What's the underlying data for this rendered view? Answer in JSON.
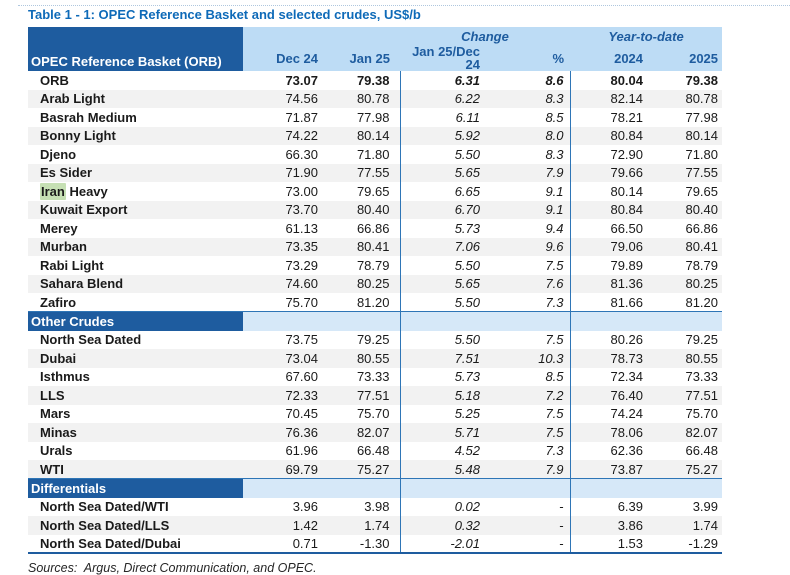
{
  "title": "Table 1 - 1: OPEC Reference Basket and selected crudes, US$/b",
  "sources": "Sources:  Argus, Direct Communication, and OPEC.",
  "table": {
    "corner_header": "OPEC Reference Basket (ORB)",
    "group_headers": {
      "change": "Change",
      "ytd": "Year-to-date"
    },
    "columns": [
      "Dec 24",
      "Jan 25",
      "Jan 25/Dec 24",
      "%",
      "2024",
      "2025"
    ],
    "sections": [
      {
        "header": null,
        "rows": [
          {
            "label": "ORB",
            "bold": true,
            "values": [
              "73.07",
              "79.38",
              "6.31",
              "8.6",
              "80.04",
              "79.38"
            ]
          },
          {
            "label": "Arab Light",
            "values": [
              "74.56",
              "80.78",
              "6.22",
              "8.3",
              "82.14",
              "80.78"
            ]
          },
          {
            "label": "Basrah Medium",
            "values": [
              "71.87",
              "77.98",
              "6.11",
              "8.5",
              "78.21",
              "77.98"
            ]
          },
          {
            "label": "Bonny Light",
            "values": [
              "74.22",
              "80.14",
              "5.92",
              "8.0",
              "80.84",
              "80.14"
            ]
          },
          {
            "label": "Djeno",
            "values": [
              "66.30",
              "71.80",
              "5.50",
              "8.3",
              "72.90",
              "71.80"
            ]
          },
          {
            "label": "Es Sider",
            "values": [
              "71.90",
              "77.55",
              "5.65",
              "7.9",
              "79.66",
              "77.55"
            ]
          },
          {
            "label": "Iran Heavy",
            "mark": "Iran",
            "values": [
              "73.00",
              "79.65",
              "6.65",
              "9.1",
              "80.14",
              "79.65"
            ]
          },
          {
            "label": "Kuwait Export",
            "values": [
              "73.70",
              "80.40",
              "6.70",
              "9.1",
              "80.84",
              "80.40"
            ]
          },
          {
            "label": "Merey",
            "values": [
              "61.13",
              "66.86",
              "5.73",
              "9.4",
              "66.50",
              "66.86"
            ]
          },
          {
            "label": "Murban",
            "values": [
              "73.35",
              "80.41",
              "7.06",
              "9.6",
              "79.06",
              "80.41"
            ]
          },
          {
            "label": "Rabi Light",
            "values": [
              "73.29",
              "78.79",
              "5.50",
              "7.5",
              "79.89",
              "78.79"
            ]
          },
          {
            "label": "Sahara Blend",
            "values": [
              "74.60",
              "80.25",
              "5.65",
              "7.6",
              "81.36",
              "80.25"
            ]
          },
          {
            "label": "Zafiro",
            "values": [
              "75.70",
              "81.20",
              "5.50",
              "7.3",
              "81.66",
              "81.20"
            ]
          }
        ]
      },
      {
        "header": "Other Crudes",
        "rows": [
          {
            "label": "North Sea Dated",
            "values": [
              "73.75",
              "79.25",
              "5.50",
              "7.5",
              "80.26",
              "79.25"
            ]
          },
          {
            "label": "Dubai",
            "values": [
              "73.04",
              "80.55",
              "7.51",
              "10.3",
              "78.73",
              "80.55"
            ]
          },
          {
            "label": "Isthmus",
            "values": [
              "67.60",
              "73.33",
              "5.73",
              "8.5",
              "72.34",
              "73.33"
            ]
          },
          {
            "label": "LLS",
            "values": [
              "72.33",
              "77.51",
              "5.18",
              "7.2",
              "76.40",
              "77.51"
            ]
          },
          {
            "label": "Mars",
            "values": [
              "70.45",
              "75.70",
              "5.25",
              "7.5",
              "74.24",
              "75.70"
            ]
          },
          {
            "label": "Minas",
            "values": [
              "76.36",
              "82.07",
              "5.71",
              "7.5",
              "78.06",
              "82.07"
            ]
          },
          {
            "label": "Urals",
            "values": [
              "61.96",
              "66.48",
              "4.52",
              "7.3",
              "62.36",
              "66.48"
            ]
          },
          {
            "label": "WTI",
            "values": [
              "69.79",
              "75.27",
              "5.48",
              "7.9",
              "73.87",
              "75.27"
            ]
          }
        ]
      },
      {
        "header": "Differentials",
        "rows": [
          {
            "label": "North Sea Dated/WTI",
            "values": [
              "3.96",
              "3.98",
              "0.02",
              "-",
              "6.39",
              "3.99"
            ]
          },
          {
            "label": "North Sea Dated/LLS",
            "values": [
              "1.42",
              "1.74",
              "0.32",
              "-",
              "3.86",
              "1.74"
            ]
          },
          {
            "label": "North Sea Dated/Dubai",
            "values": [
              "0.71",
              "-1.30",
              "-2.01",
              "-",
              "1.53",
              "-1.29"
            ]
          }
        ]
      }
    ]
  },
  "colors": {
    "dark_blue": "#1E5C9F",
    "header_light_blue": "#BDDCF5",
    "section_light_blue": "#D6E8F8",
    "stripe_gray": "#F2F2F2",
    "divider_blue": "#2E75B6",
    "title_blue": "#0E6AB8",
    "highlight_green": "#C6E0B4",
    "text": "#1A1A1A"
  }
}
